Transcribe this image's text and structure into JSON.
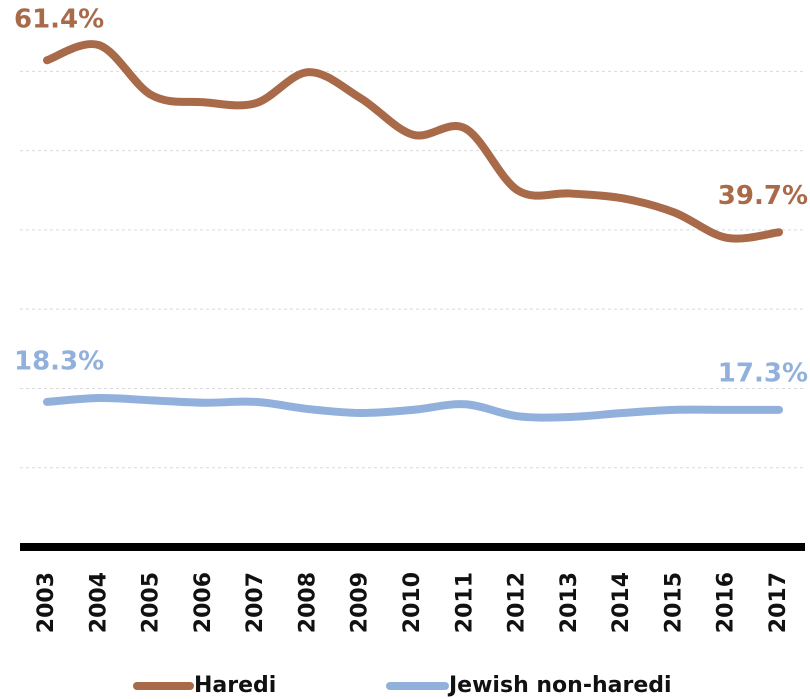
{
  "chart_data": {
    "type": "line",
    "categories": [
      "2003",
      "2004",
      "2005",
      "2006",
      "2007",
      "2008",
      "2009",
      "2010",
      "2011",
      "2012",
      "2013",
      "2014",
      "2015",
      "2016",
      "2017"
    ],
    "series": [
      {
        "name": "Haredi",
        "color": "#a86a48",
        "values": [
          61.4,
          63.3,
          57.0,
          56.1,
          56.0,
          59.9,
          56.6,
          52.0,
          52.8,
          45.0,
          44.6,
          44.0,
          42.2,
          39.0,
          39.7
        ],
        "value_labels": [
          "61.4%",
          null,
          null,
          null,
          null,
          null,
          null,
          null,
          null,
          null,
          null,
          null,
          null,
          null,
          "39.7%"
        ]
      },
      {
        "name": "Jewish non-haredi",
        "color": "#92b0dc",
        "values": [
          18.3,
          18.8,
          18.5,
          18.2,
          18.3,
          17.4,
          16.9,
          17.3,
          18.0,
          16.5,
          16.4,
          16.9,
          17.3,
          17.3,
          17.3
        ],
        "value_labels": [
          "18.3%",
          null,
          null,
          null,
          null,
          null,
          null,
          null,
          null,
          null,
          null,
          null,
          null,
          null,
          "17.3%"
        ]
      }
    ],
    "ylim": [
      0,
      69
    ],
    "yticks": [
      0,
      10,
      20,
      30,
      40,
      50,
      60
    ],
    "grid": true
  }
}
